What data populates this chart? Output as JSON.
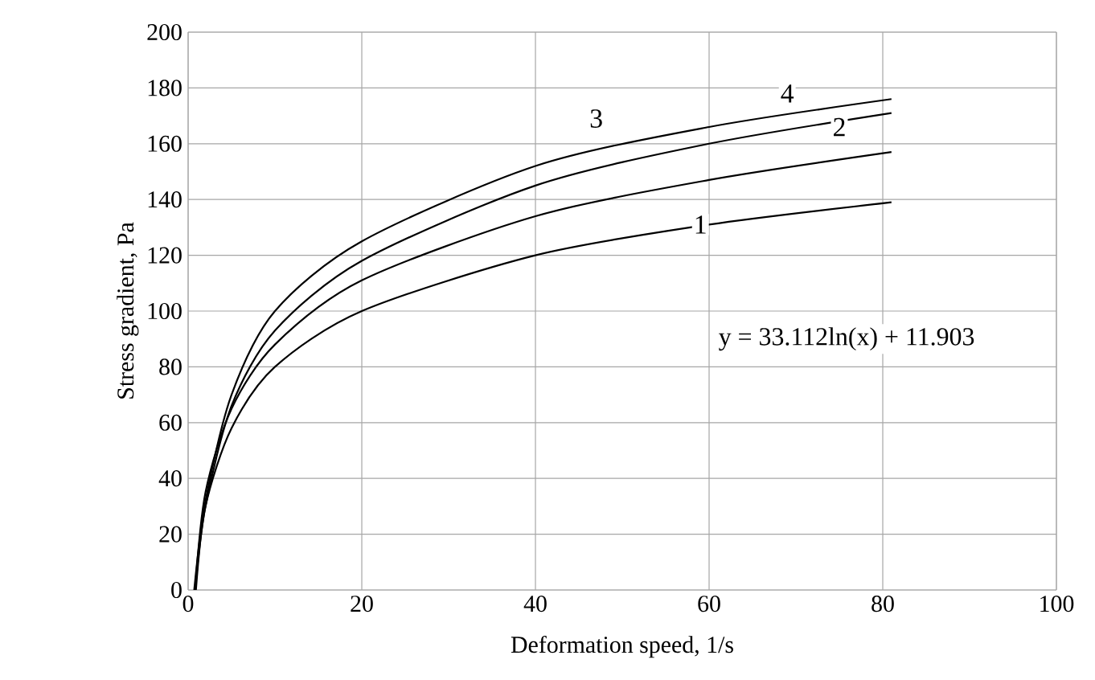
{
  "chart_data": {
    "type": "line",
    "xlabel": "Deformation speed, 1/s",
    "ylabel": "Stress gradient, Pa",
    "xlim": [
      0,
      100
    ],
    "xticks": [
      0,
      20,
      40,
      60,
      80,
      100
    ],
    "ylim": [
      0,
      200
    ],
    "yticks": [
      0,
      20,
      40,
      60,
      80,
      100,
      120,
      140,
      160,
      180,
      200
    ],
    "grid": true,
    "marker": "none",
    "line_style": "solid",
    "series": [
      {
        "color": "#000000",
        "x": [
          0.9,
          2,
          5,
          10,
          20,
          40,
          60,
          81
        ],
        "values": [
          0,
          30,
          58,
          80,
          100,
          120,
          131,
          139
        ]
      },
      {
        "color": "#000000",
        "x": [
          0.8,
          2,
          5,
          10,
          20,
          40,
          60,
          81
        ],
        "values": [
          0,
          35,
          65,
          88,
          111,
          134,
          147,
          157
        ]
      },
      {
        "color": "#000000",
        "x": [
          0.8,
          2,
          5,
          10,
          20,
          40,
          60,
          81
        ],
        "values": [
          0,
          30,
          66,
          93,
          118,
          145,
          160,
          171
        ]
      },
      {
        "color": "#000000",
        "x": [
          0.7,
          2,
          5,
          10,
          20,
          40,
          60,
          81
        ],
        "values": [
          0,
          32,
          70,
          100,
          125,
          152,
          166,
          176
        ]
      }
    ],
    "annotations": [
      {
        "text": "1",
        "x": 59,
        "y": 131
      },
      {
        "text": "2",
        "x": 75,
        "y": 166
      },
      {
        "text": "3",
        "x": 47,
        "y": 169
      },
      {
        "text": "4",
        "x": 69,
        "y": 178
      },
      "y = 33.112ln(x) + 11.903"
    ]
  }
}
